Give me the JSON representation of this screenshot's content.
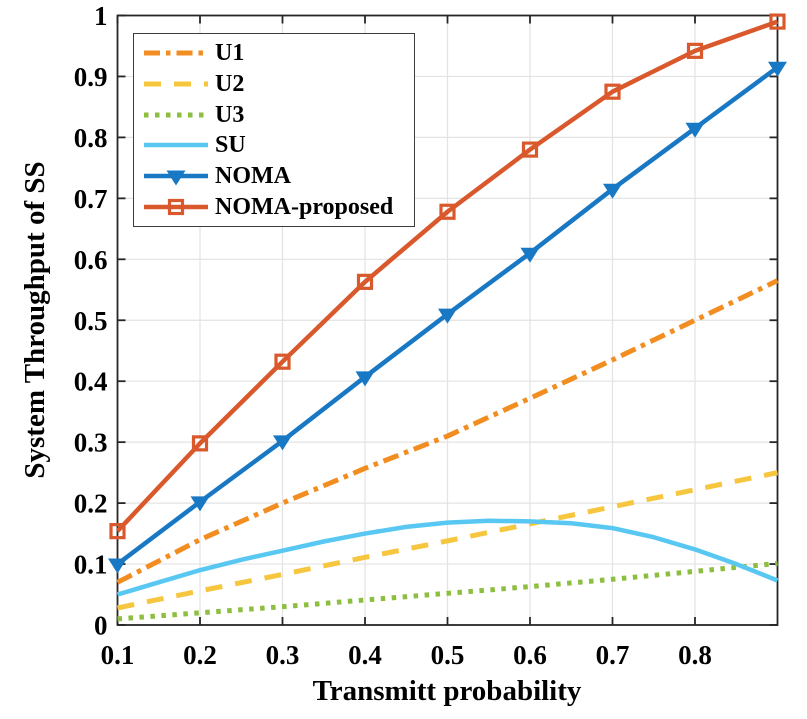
{
  "chart_data": {
    "type": "line",
    "title": "",
    "xlabel": "Transmitt probability",
    "ylabel": "System Throughput of SS",
    "xlim": [
      0.1,
      0.9
    ],
    "ylim": [
      0,
      1
    ],
    "grid": true,
    "legend_position": "top-left",
    "x_ticks": [
      0.1,
      0.2,
      0.3,
      0.4,
      0.5,
      0.6,
      0.7,
      0.8
    ],
    "x_tick_labels": [
      "0.1",
      "0.2",
      "0.3",
      "0.4",
      "0.5",
      "0.6",
      "0.7",
      "0.8"
    ],
    "y_ticks": [
      0,
      0.1,
      0.2,
      0.3,
      0.4,
      0.5,
      0.6,
      0.7,
      0.8,
      0.9,
      1
    ],
    "y_tick_labels": [
      "0",
      "0.1",
      "0.2",
      "0.3",
      "0.4",
      "0.5",
      "0.6",
      "0.7",
      "0.8",
      "0.9",
      "1"
    ],
    "series": [
      {
        "name": "U1",
        "color": "#F28D21",
        "style": "dashdot",
        "marker": "none",
        "line_width": 5,
        "x": [
          0.1,
          0.2,
          0.3,
          0.4,
          0.5,
          0.6,
          0.7,
          0.8,
          0.9
        ],
        "values": [
          0.07,
          0.14,
          0.2,
          0.257,
          0.31,
          0.372,
          0.435,
          0.5,
          0.565
        ]
      },
      {
        "name": "U2",
        "color": "#F6C63F",
        "style": "dashed",
        "marker": "none",
        "line_width": 5,
        "x": [
          0.1,
          0.2,
          0.3,
          0.4,
          0.5,
          0.6,
          0.7,
          0.8,
          0.9
        ],
        "values": [
          0.028,
          0.056,
          0.083,
          0.111,
          0.138,
          0.166,
          0.194,
          0.222,
          0.25
        ]
      },
      {
        "name": "U3",
        "color": "#8CBF3F",
        "style": "dotted",
        "marker": "none",
        "line_width": 5,
        "x": [
          0.1,
          0.2,
          0.3,
          0.4,
          0.5,
          0.6,
          0.7,
          0.8,
          0.9
        ],
        "values": [
          0.01,
          0.02,
          0.03,
          0.041,
          0.052,
          0.063,
          0.075,
          0.088,
          0.101
        ]
      },
      {
        "name": "SU",
        "color": "#58C8F2",
        "style": "solid",
        "marker": "none",
        "line_width": 4.5,
        "x": [
          0.1,
          0.15,
          0.2,
          0.25,
          0.3,
          0.35,
          0.4,
          0.45,
          0.5,
          0.55,
          0.6,
          0.65,
          0.7,
          0.75,
          0.8,
          0.85,
          0.9
        ],
        "values": [
          0.05,
          0.07,
          0.09,
          0.107,
          0.122,
          0.137,
          0.15,
          0.161,
          0.168,
          0.171,
          0.17,
          0.167,
          0.159,
          0.144,
          0.124,
          0.1,
          0.073
        ]
      },
      {
        "name": "NOMA",
        "color": "#1878C4",
        "style": "solid",
        "marker": "triangle-down",
        "line_width": 4.5,
        "x": [
          0.1,
          0.2,
          0.3,
          0.4,
          0.5,
          0.6,
          0.7,
          0.8,
          0.9
        ],
        "values": [
          0.1,
          0.202,
          0.302,
          0.407,
          0.51,
          0.61,
          0.715,
          0.815,
          0.915
        ]
      },
      {
        "name": "NOMA-proposed",
        "color": "#D9592C",
        "style": "solid",
        "marker": "square-open",
        "line_width": 4.5,
        "x": [
          0.1,
          0.2,
          0.3,
          0.4,
          0.5,
          0.6,
          0.7,
          0.8,
          0.9
        ],
        "values": [
          0.154,
          0.298,
          0.432,
          0.563,
          0.678,
          0.78,
          0.875,
          0.942,
          0.99
        ]
      }
    ]
  },
  "colors": {
    "background": "#FFFFFF",
    "grid": "#E3E3E3",
    "axis": "#262626",
    "tick_label": "#000000",
    "legend_border": "#3C3C3C"
  }
}
